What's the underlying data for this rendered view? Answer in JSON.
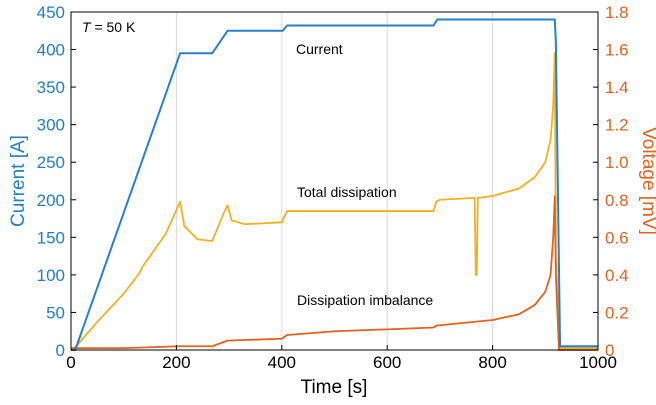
{
  "chart_data": {
    "type": "line",
    "xlabel": "Time [s]",
    "ylabel_left": "Current [A]",
    "ylabel_right": "Voltage [mV]",
    "xlim": [
      0,
      1000
    ],
    "ylim_left": [
      0,
      450
    ],
    "ylim_right": [
      0,
      1.8
    ],
    "x_ticks": [
      "0",
      "200",
      "400",
      "600",
      "800",
      "1000"
    ],
    "y_left_ticks": [
      "0",
      "50",
      "100",
      "150",
      "200",
      "250",
      "300",
      "350",
      "400",
      "450"
    ],
    "y_right_ticks": [
      "0",
      "0.2",
      "0.4",
      "0.6",
      "0.8",
      "1.0",
      "1.2",
      "1.4",
      "1.6",
      "1.8"
    ],
    "grid": "vertical",
    "annotation_temp": {
      "var": "T",
      "rest": " = 50 K"
    },
    "colors": {
      "left_axis": "#1f7fc4",
      "right_axis": "#e0631f",
      "current": "#2a7fc9",
      "total": "#eeb121",
      "imbalance": "#e0631f"
    },
    "series": [
      {
        "name": "Current",
        "axis": "left",
        "x": [
          0,
          8,
          207,
          268,
          297,
          402,
          410,
          688,
          695,
          918,
          920,
          928,
          1000
        ],
        "y": [
          0,
          0,
          395,
          395,
          425,
          425,
          432,
          432,
          440,
          440,
          410,
          5,
          5
        ]
      },
      {
        "name": "Total dissipation",
        "axis": "right",
        "x": [
          0,
          10,
          50,
          100,
          130,
          135,
          150,
          180,
          207,
          215,
          240,
          268,
          290,
          297,
          305,
          330,
          400,
          410,
          420,
          500,
          600,
          688,
          693,
          700,
          766,
          768,
          770,
          772,
          800,
          850,
          880,
          900,
          910,
          915,
          918,
          920,
          928,
          1000
        ],
        "y": [
          0.0,
          0.02,
          0.15,
          0.3,
          0.41,
          0.44,
          0.5,
          0.62,
          0.79,
          0.66,
          0.59,
          0.58,
          0.73,
          0.77,
          0.69,
          0.67,
          0.68,
          0.74,
          0.74,
          0.74,
          0.74,
          0.74,
          0.79,
          0.8,
          0.81,
          0.4,
          0.4,
          0.81,
          0.82,
          0.86,
          0.92,
          1.0,
          1.12,
          1.3,
          1.58,
          0.5,
          0.01,
          0.01
        ]
      },
      {
        "name": "Dissipation imbalance",
        "axis": "right",
        "x": [
          0,
          100,
          207,
          268,
          297,
          400,
          410,
          500,
          600,
          688,
          693,
          800,
          850,
          880,
          900,
          910,
          915,
          918,
          920,
          926,
          1000
        ],
        "y": [
          0.01,
          0.01,
          0.02,
          0.02,
          0.05,
          0.06,
          0.08,
          0.1,
          0.11,
          0.12,
          0.13,
          0.16,
          0.19,
          0.24,
          0.31,
          0.4,
          0.6,
          0.82,
          0.4,
          0.0,
          0.0
        ]
      }
    ]
  }
}
